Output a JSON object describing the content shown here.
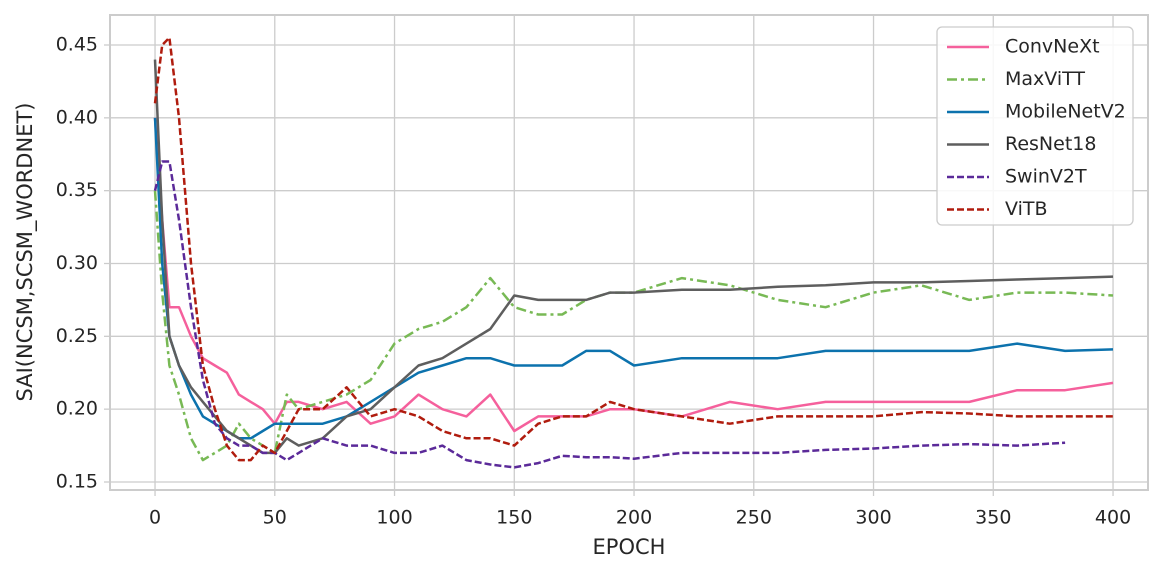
{
  "chart_data": {
    "type": "line",
    "xlabel": "EPOCH",
    "ylabel": "SAI(NCSM,SCSM_WORDNET)",
    "xlim": [
      -18.8,
      414.6
    ],
    "ylim": [
      0.1445,
      0.4706
    ],
    "xticks": [
      0,
      50,
      100,
      150,
      200,
      250,
      300,
      350,
      400
    ],
    "yticks": [
      0.15,
      {
        "value": 0.2,
        "label": "0.20"
      },
      0.25,
      {
        "value": 0.3,
        "label": "0.30"
      },
      0.35,
      {
        "value": 0.4,
        "label": "0.40"
      },
      0.45
    ],
    "grid": true,
    "legend": "upper right",
    "x": [
      0,
      3,
      6,
      10,
      15,
      20,
      25,
      30,
      35,
      40,
      45,
      50,
      55,
      60,
      70,
      80,
      90,
      100,
      110,
      120,
      130,
      140,
      150,
      160,
      170,
      180,
      190,
      200,
      220,
      240,
      260,
      280,
      300,
      320,
      340,
      360,
      380,
      400
    ],
    "series": [
      {
        "name": "ConvNeXt",
        "color": "#f5609c",
        "linestyle": "solid",
        "values": [
          0.4,
          0.33,
          0.27,
          0.27,
          0.25,
          0.235,
          0.23,
          0.225,
          0.21,
          0.205,
          0.2,
          0.19,
          0.205,
          0.205,
          0.2,
          0.205,
          0.19,
          0.195,
          0.21,
          0.2,
          0.195,
          0.21,
          0.185,
          0.195,
          0.195,
          0.195,
          0.2,
          0.2,
          0.195,
          0.205,
          0.2,
          0.205,
          0.205,
          0.205,
          0.205,
          0.213,
          0.213,
          0.218
        ]
      },
      {
        "name": "MaxViTT",
        "color": "#78b955",
        "linestyle": "dashdot",
        "values": [
          0.35,
          0.28,
          0.23,
          0.21,
          0.18,
          0.165,
          0.17,
          0.175,
          0.19,
          0.18,
          0.175,
          0.17,
          0.21,
          0.2,
          0.205,
          0.21,
          0.22,
          0.245,
          0.255,
          0.26,
          0.27,
          0.29,
          0.27,
          0.265,
          0.265,
          0.275,
          0.28,
          0.28,
          0.29,
          0.285,
          0.275,
          0.27,
          0.28,
          0.285,
          0.275,
          0.28,
          0.28,
          0.278
        ]
      },
      {
        "name": "MobileNetV2",
        "color": "#0c72ad",
        "linestyle": "solid",
        "values": [
          0.4,
          0.3,
          0.25,
          0.23,
          0.21,
          0.195,
          0.19,
          0.185,
          0.18,
          0.18,
          0.185,
          0.19,
          0.19,
          0.19,
          0.19,
          0.195,
          0.205,
          0.215,
          0.225,
          0.23,
          0.235,
          0.235,
          0.23,
          0.23,
          0.23,
          0.24,
          0.24,
          0.23,
          0.235,
          0.235,
          0.235,
          0.24,
          0.24,
          0.24,
          0.24,
          0.245,
          0.24,
          0.241
        ]
      },
      {
        "name": "ResNet18",
        "color": "#5e5e5e",
        "linestyle": "solid",
        "values": [
          0.44,
          0.33,
          0.25,
          0.23,
          0.215,
          0.205,
          0.195,
          0.185,
          0.18,
          0.175,
          0.17,
          0.17,
          0.18,
          0.175,
          0.18,
          0.195,
          0.2,
          0.215,
          0.23,
          0.235,
          0.245,
          0.255,
          0.278,
          0.275,
          0.275,
          0.275,
          0.28,
          0.28,
          0.282,
          0.282,
          0.284,
          0.285,
          0.287,
          0.287,
          0.288,
          0.289,
          0.29,
          0.291
        ]
      },
      {
        "name": "SwinV2T",
        "color": "#5b2a99",
        "linestyle": "dashed",
        "values": [
          0.35,
          0.37,
          0.37,
          0.33,
          0.27,
          0.22,
          0.19,
          0.18,
          0.175,
          0.175,
          0.17,
          0.17,
          0.165,
          0.17,
          0.18,
          0.175,
          0.175,
          0.17,
          0.17,
          0.175,
          0.165,
          0.162,
          0.16,
          0.163,
          0.168,
          0.167,
          0.167,
          0.166,
          0.17,
          0.17,
          0.17,
          0.172,
          0.173,
          0.175,
          0.176,
          0.175,
          0.177,
          null
        ]
      },
      {
        "name": "ViTB",
        "color": "#b01c0e",
        "linestyle": "dashed",
        "values": [
          0.41,
          0.45,
          0.455,
          0.4,
          0.3,
          0.23,
          0.2,
          0.175,
          0.165,
          0.165,
          0.175,
          0.17,
          0.185,
          0.2,
          0.2,
          0.215,
          0.195,
          0.2,
          0.195,
          0.185,
          0.18,
          0.18,
          0.175,
          0.19,
          0.195,
          0.195,
          0.205,
          0.2,
          0.195,
          0.19,
          0.195,
          0.195,
          0.195,
          0.198,
          0.197,
          0.195,
          0.195,
          0.195
        ]
      }
    ]
  }
}
